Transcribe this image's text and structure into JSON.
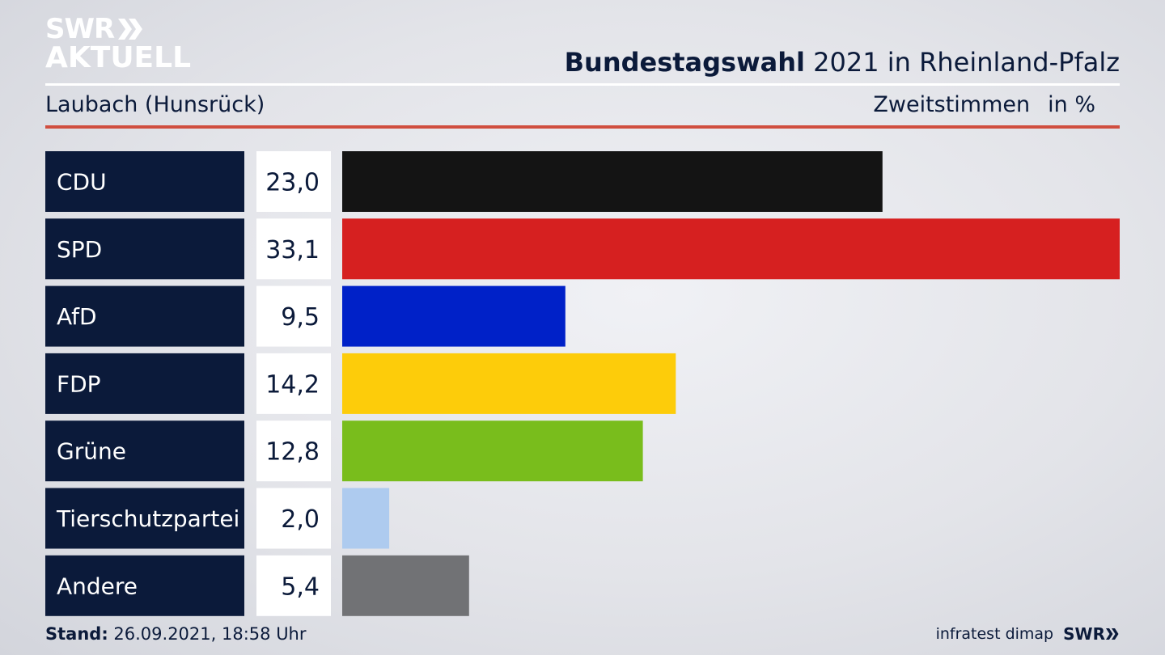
{
  "brand": {
    "line1": "SWR",
    "line2": "AKTUELL"
  },
  "header": {
    "title_bold": "Bundestagswahl",
    "title_rest": "2021 in Rheinland-Pfalz",
    "location": "Laubach (Hunsrück)",
    "measure": "Zweitstimmen",
    "unit": "in %"
  },
  "footer": {
    "stand_label": "Stand:",
    "stand_value": "26.09.2021, 18:58 Uhr",
    "source": "infratest dimap",
    "broadcaster": "SWR"
  },
  "colors": {
    "label_bg": "#0b1a3a",
    "accent_rule": "#d04e3f"
  },
  "chart_data": {
    "type": "bar",
    "orientation": "horizontal",
    "categories": [
      "CDU",
      "SPD",
      "AfD",
      "FDP",
      "Grüne",
      "Tierschutzpartei",
      "Andere"
    ],
    "values": [
      23.0,
      33.1,
      9.5,
      14.2,
      12.8,
      2.0,
      5.4
    ],
    "value_labels": [
      "23,0",
      "33,1",
      "9,5",
      "14,2",
      "12,8",
      "2,0",
      "5,4"
    ],
    "colors": [
      "#141414",
      "#d62020",
      "#0021c8",
      "#fdcc0a",
      "#79bd1c",
      "#aecbef",
      "#717275"
    ],
    "xlim": [
      0,
      33.1
    ],
    "grid": false
  }
}
